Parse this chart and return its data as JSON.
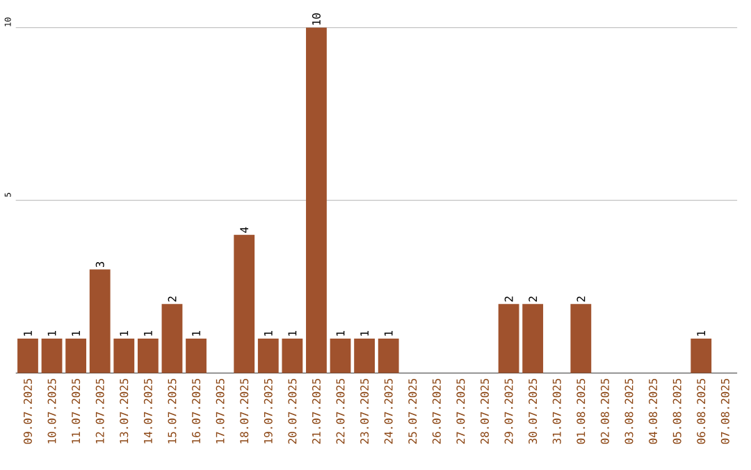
{
  "chart_data": {
    "type": "bar",
    "categories": [
      "09.07.2025",
      "10.07.2025",
      "11.07.2025",
      "12.07.2025",
      "13.07.2025",
      "14.07.2025",
      "15.07.2025",
      "16.07.2025",
      "17.07.2025",
      "18.07.2025",
      "19.07.2025",
      "20.07.2025",
      "21.07.2025",
      "22.07.2025",
      "23.07.2025",
      "24.07.2025",
      "25.07.2025",
      "26.07.2025",
      "27.07.2025",
      "28.07.2025",
      "29.07.2025",
      "30.07.2025",
      "31.07.2025",
      "01.08.2025",
      "02.08.2025",
      "03.08.2025",
      "04.08.2025",
      "05.08.2025",
      "06.08.2025",
      "07.08.2025"
    ],
    "values": [
      1,
      1,
      1,
      3,
      1,
      1,
      2,
      1,
      0,
      4,
      1,
      1,
      10,
      1,
      1,
      1,
      0,
      0,
      0,
      0,
      2,
      2,
      0,
      2,
      0,
      0,
      0,
      0,
      1,
      0
    ],
    "value_labels": [
      "1",
      "1",
      "1",
      "3",
      "1",
      "1",
      "2",
      "1",
      null,
      "4",
      "1",
      "1",
      "10",
      "1",
      "1",
      "1",
      null,
      null,
      null,
      null,
      "2",
      "2",
      null,
      "2",
      null,
      null,
      null,
      null,
      "1",
      null
    ],
    "color": "#a0522d",
    "ylim": [
      0,
      10
    ],
    "yticks": [
      5,
      10
    ],
    "grid": "y"
  }
}
